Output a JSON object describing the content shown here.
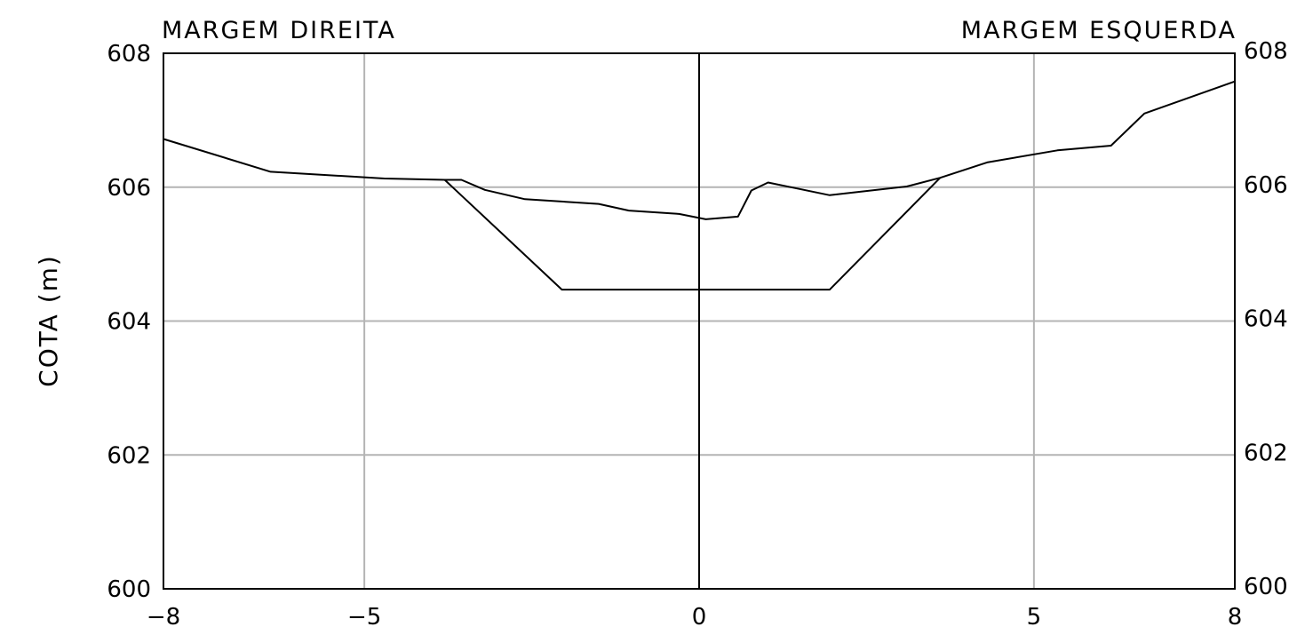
{
  "chart_data": {
    "type": "line",
    "margin_left_label": "MARGEM DIREITA",
    "margin_right_label": "MARGEM ESQUERDA",
    "ylabel": "COTA (m)",
    "xlabel": "",
    "xlim": [
      -8,
      8
    ],
    "ylim": [
      600,
      608
    ],
    "x_ticks": [
      -8,
      -5,
      0,
      5,
      8
    ],
    "x_tick_labels": [
      "−8",
      "−5",
      "0",
      "5",
      "8"
    ],
    "y_ticks": [
      600,
      602,
      604,
      606,
      608
    ],
    "y_tick_labels": [
      "600",
      "602",
      "604",
      "606",
      "608"
    ],
    "grid": true,
    "grid_color": "#b4b4b4",
    "line_color": "#000000",
    "series": [
      {
        "values_x": [
          -8.0,
          -6.4,
          -4.7,
          -3.8,
          -3.55,
          -3.2,
          -2.6,
          -1.5,
          -1.05,
          -0.3,
          0.1,
          0.58,
          0.78,
          1.03,
          1.95,
          3.1,
          3.6,
          4.3,
          5.35,
          6.15,
          6.65,
          8.0
        ],
        "values_y": [
          606.72,
          606.23,
          606.13,
          606.11,
          606.11,
          605.96,
          605.82,
          605.75,
          605.65,
          605.6,
          605.52,
          605.56,
          605.95,
          606.07,
          605.88,
          606.01,
          606.14,
          606.37,
          606.55,
          606.62,
          607.1,
          607.58
        ]
      },
      {
        "values_x": [
          -3.8,
          -2.05,
          1.95,
          3.6
        ],
        "values_y": [
          606.11,
          604.47,
          604.47,
          606.14
        ]
      }
    ]
  }
}
